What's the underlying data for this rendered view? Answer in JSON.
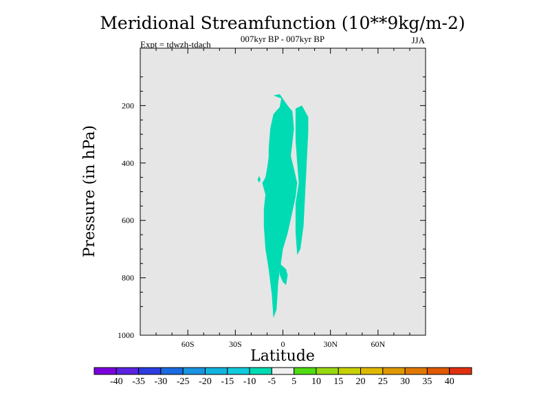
{
  "chart_data": {
    "type": "heatmap",
    "title": "Meridional Streamfunction (10**9kg/m-2)",
    "subtitle_center": "007kyr BP - 007kyr BP",
    "subtitle_left": "Expt = tdwzh-tdach",
    "subtitle_right": "JJA",
    "xlabel": "Latitude",
    "ylabel": "Pressure (in hPa)",
    "xlim": [
      -90,
      90
    ],
    "ylim": [
      1000,
      0
    ],
    "x_ticks": [
      {
        "value": -60,
        "label": "60S"
      },
      {
        "value": -30,
        "label": "30S"
      },
      {
        "value": 0,
        "label": "0"
      },
      {
        "value": 30,
        "label": "30N"
      },
      {
        "value": 60,
        "label": "60N"
      }
    ],
    "y_ticks": [
      {
        "value": 200,
        "label": "200"
      },
      {
        "value": 400,
        "label": "400"
      },
      {
        "value": 600,
        "label": "600"
      },
      {
        "value": 800,
        "label": "800"
      },
      {
        "value": 1000,
        "label": "1000"
      }
    ],
    "background_color": "#e6e6e6",
    "contour_band": {
      "range": [
        -10,
        -5
      ],
      "color": "#00dbb4"
    },
    "regions": [
      {
        "name": "main-cell",
        "points": [
          [
            -6,
            165
          ],
          [
            -1,
            175
          ],
          [
            -2,
            205
          ],
          [
            -6,
            230
          ],
          [
            -8,
            280
          ],
          [
            -9,
            350
          ],
          [
            -9,
            380
          ],
          [
            -10,
            420
          ],
          [
            -11,
            450
          ],
          [
            -13,
            470
          ],
          [
            -11,
            510
          ],
          [
            -12,
            560
          ],
          [
            -12,
            620
          ],
          [
            -11,
            700
          ],
          [
            -9,
            770
          ],
          [
            -7,
            860
          ],
          [
            -6,
            940
          ],
          [
            -4,
            910
          ],
          [
            -3,
            820
          ],
          [
            -2,
            775
          ],
          [
            -1,
            740
          ],
          [
            0,
            700
          ],
          [
            3,
            645
          ],
          [
            6,
            570
          ],
          [
            8,
            520
          ],
          [
            9,
            470
          ],
          [
            7,
            420
          ],
          [
            5,
            375
          ],
          [
            6,
            330
          ],
          [
            7,
            280
          ],
          [
            6,
            220
          ],
          [
            3,
            200
          ],
          [
            -2,
            160
          ]
        ]
      },
      {
        "name": "right-cell",
        "points": [
          [
            8,
            210
          ],
          [
            12,
            200
          ],
          [
            14,
            220
          ],
          [
            16,
            240
          ],
          [
            16,
            290
          ],
          [
            15,
            400
          ],
          [
            14,
            510
          ],
          [
            13,
            620
          ],
          [
            11,
            700
          ],
          [
            9,
            720
          ],
          [
            8,
            640
          ],
          [
            8,
            540
          ],
          [
            10,
            470
          ],
          [
            9,
            400
          ],
          [
            8,
            320
          ]
        ]
      },
      {
        "name": "blob-left",
        "points": [
          [
            -15,
            445
          ],
          [
            -14,
            458
          ],
          [
            -15,
            468
          ],
          [
            -16,
            458
          ]
        ]
      },
      {
        "name": "blob-lower",
        "points": [
          [
            -2,
            750
          ],
          [
            2,
            770
          ],
          [
            3,
            790
          ],
          [
            2,
            825
          ],
          [
            0,
            815
          ],
          [
            -2,
            790
          ]
        ]
      }
    ],
    "colorbar": {
      "colors": [
        "#7a00dc",
        "#5a22e0",
        "#2c3ce0",
        "#1a6ae0",
        "#1a94e0",
        "#10b4de",
        "#10cadc",
        "#00dbb4",
        "#f0f0f0",
        "#50dc10",
        "#98d810",
        "#c8d000",
        "#e0b800",
        "#e09800",
        "#e07800",
        "#e05800",
        "#e03010"
      ],
      "labels": [
        "-40",
        "-35",
        "-30",
        "-25",
        "-20",
        "-15",
        "-10",
        "-5",
        "5",
        "10",
        "15",
        "20",
        "25",
        "30",
        "35",
        "40"
      ]
    }
  }
}
